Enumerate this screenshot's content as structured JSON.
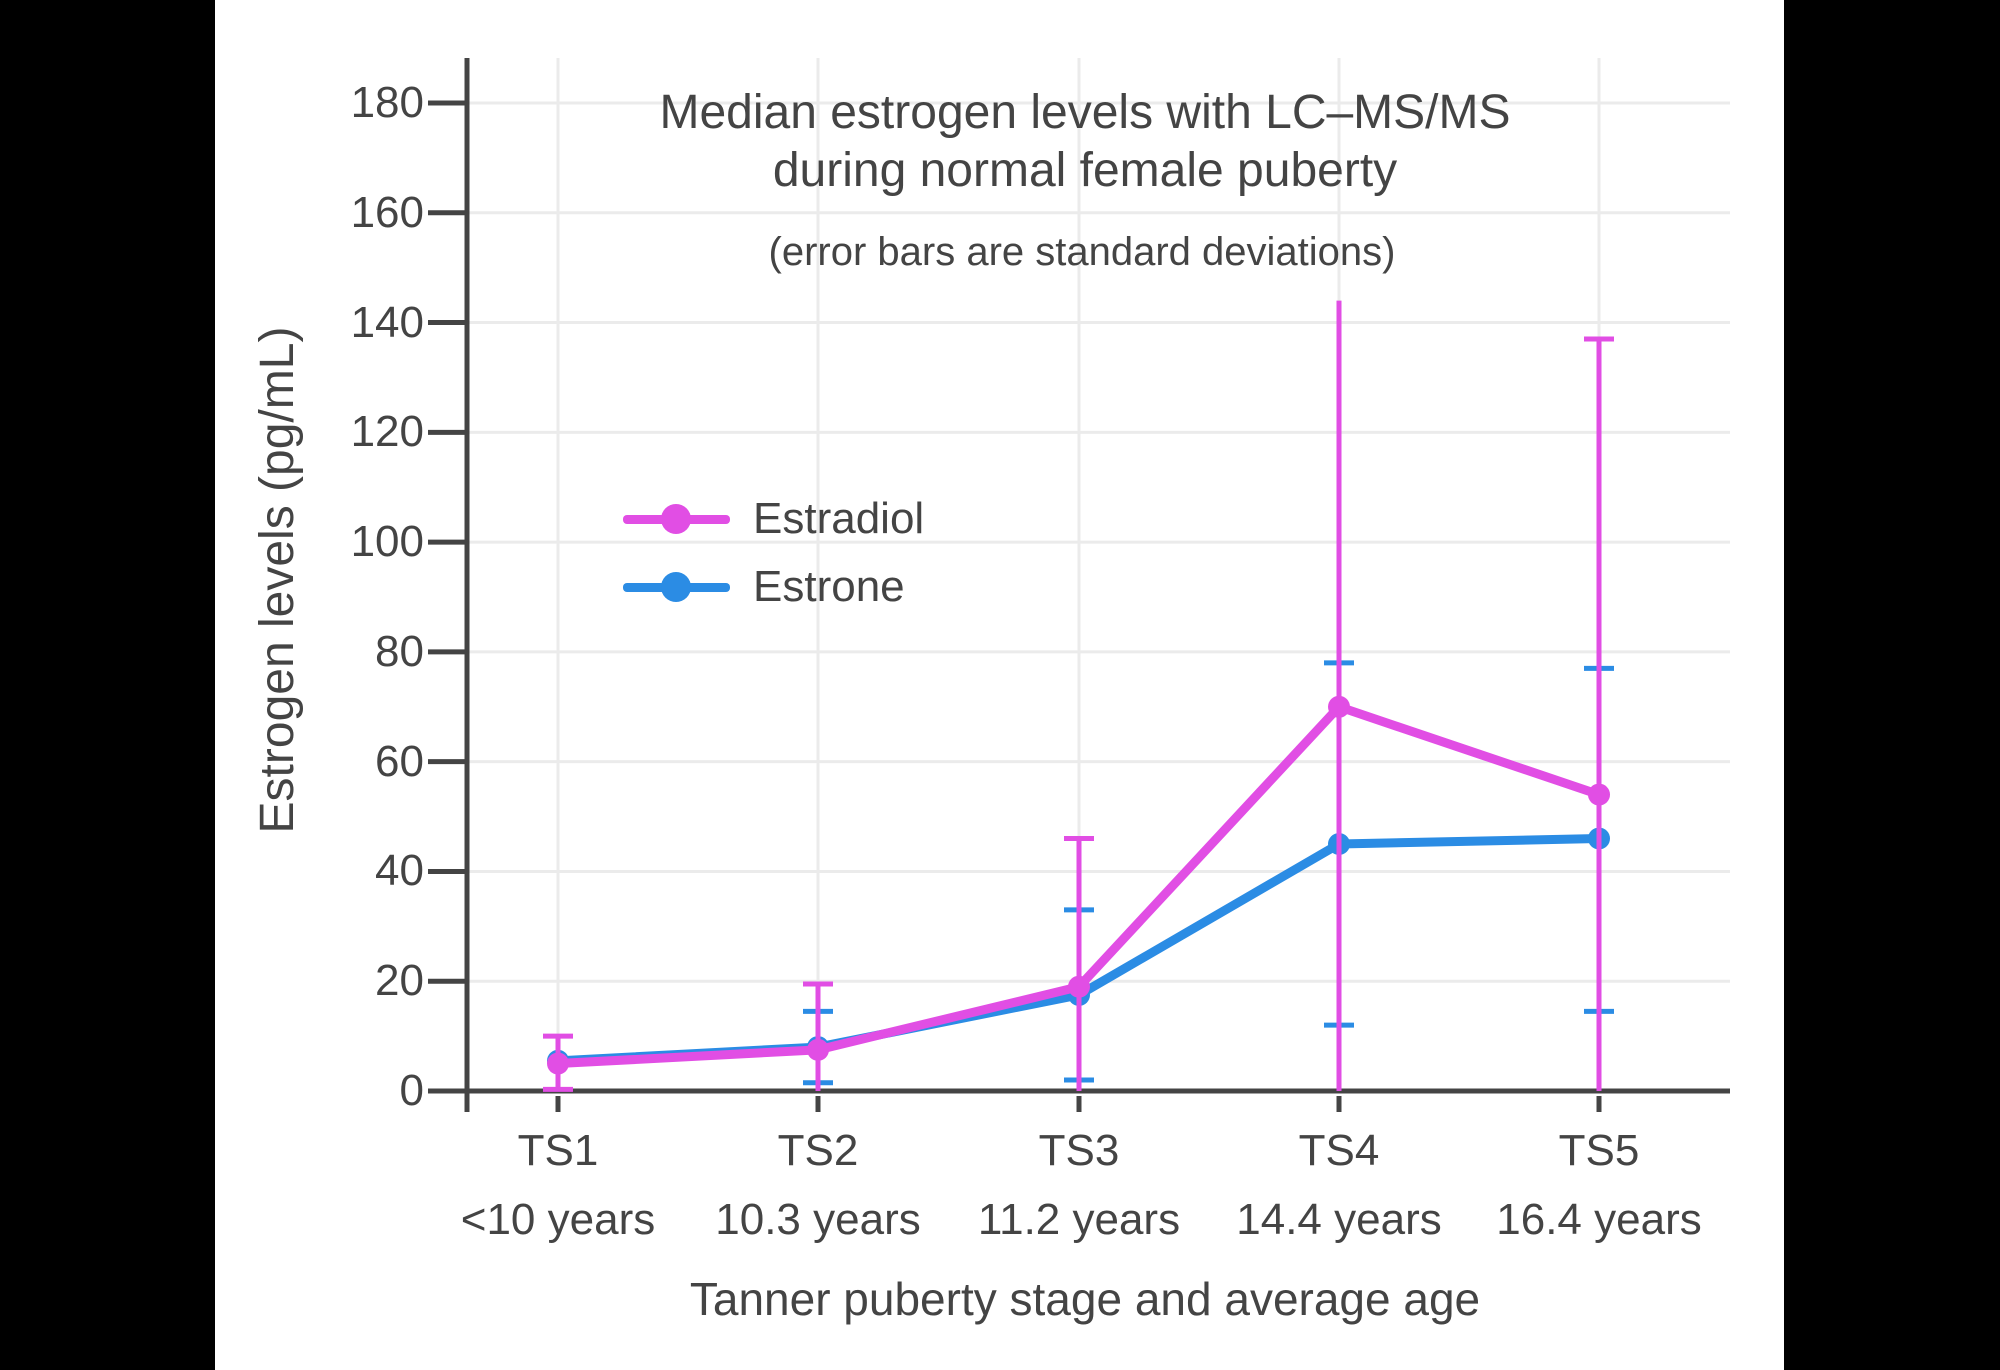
{
  "colors": {
    "page_background": "#000000",
    "canvas_background": "#FFFFFF",
    "text": "#444444",
    "axis": "#444444",
    "gridline": "#EBEBEB",
    "estradiol": "#E14EE4",
    "estrone": "#2B8CE4"
  },
  "chart_data": {
    "type": "line",
    "title_lines": [
      "Median estrogen levels with LC–MS/MS",
      "during normal female puberty"
    ],
    "subtitle": "(error bars are standard deviations)",
    "xlabel": "Tanner puberty stage and average age",
    "ylabel": "Estrogen levels (pg/mL)",
    "categories": [
      "TS1",
      "TS2",
      "TS3",
      "TS4",
      "TS5"
    ],
    "category_sublabels": [
      "<10 years",
      "10.3 years",
      "11.2 years",
      "14.4 years",
      "16.4 years"
    ],
    "yticks": [
      0,
      20,
      40,
      60,
      80,
      100,
      120,
      140,
      160,
      180
    ],
    "ylim": [
      0,
      188
    ],
    "grid": true,
    "legend_position": "inside-upper-left",
    "error_bar_meaning": "standard deviations",
    "series": [
      {
        "name": "Estradiol",
        "color": "#E14EE4",
        "values": [
          5,
          7.5,
          19,
          70,
          54
        ],
        "error_top": [
          10,
          19.5,
          46,
          144,
          137
        ],
        "error_bottom": [
          0.3,
          0,
          0,
          0,
          0
        ],
        "cap_top": [
          true,
          true,
          true,
          false,
          true
        ],
        "cap_bottom": [
          true,
          false,
          false,
          false,
          false
        ]
      },
      {
        "name": "Estrone",
        "color": "#2B8CE4",
        "values": [
          5.5,
          8,
          17.5,
          45,
          46
        ],
        "error_top": [
          null,
          14.5,
          33,
          78,
          77
        ],
        "error_bottom": [
          null,
          1.5,
          2,
          12,
          14.5
        ],
        "cap_top": [
          false,
          true,
          true,
          true,
          true
        ],
        "cap_bottom": [
          false,
          true,
          true,
          true,
          true
        ]
      }
    ]
  }
}
